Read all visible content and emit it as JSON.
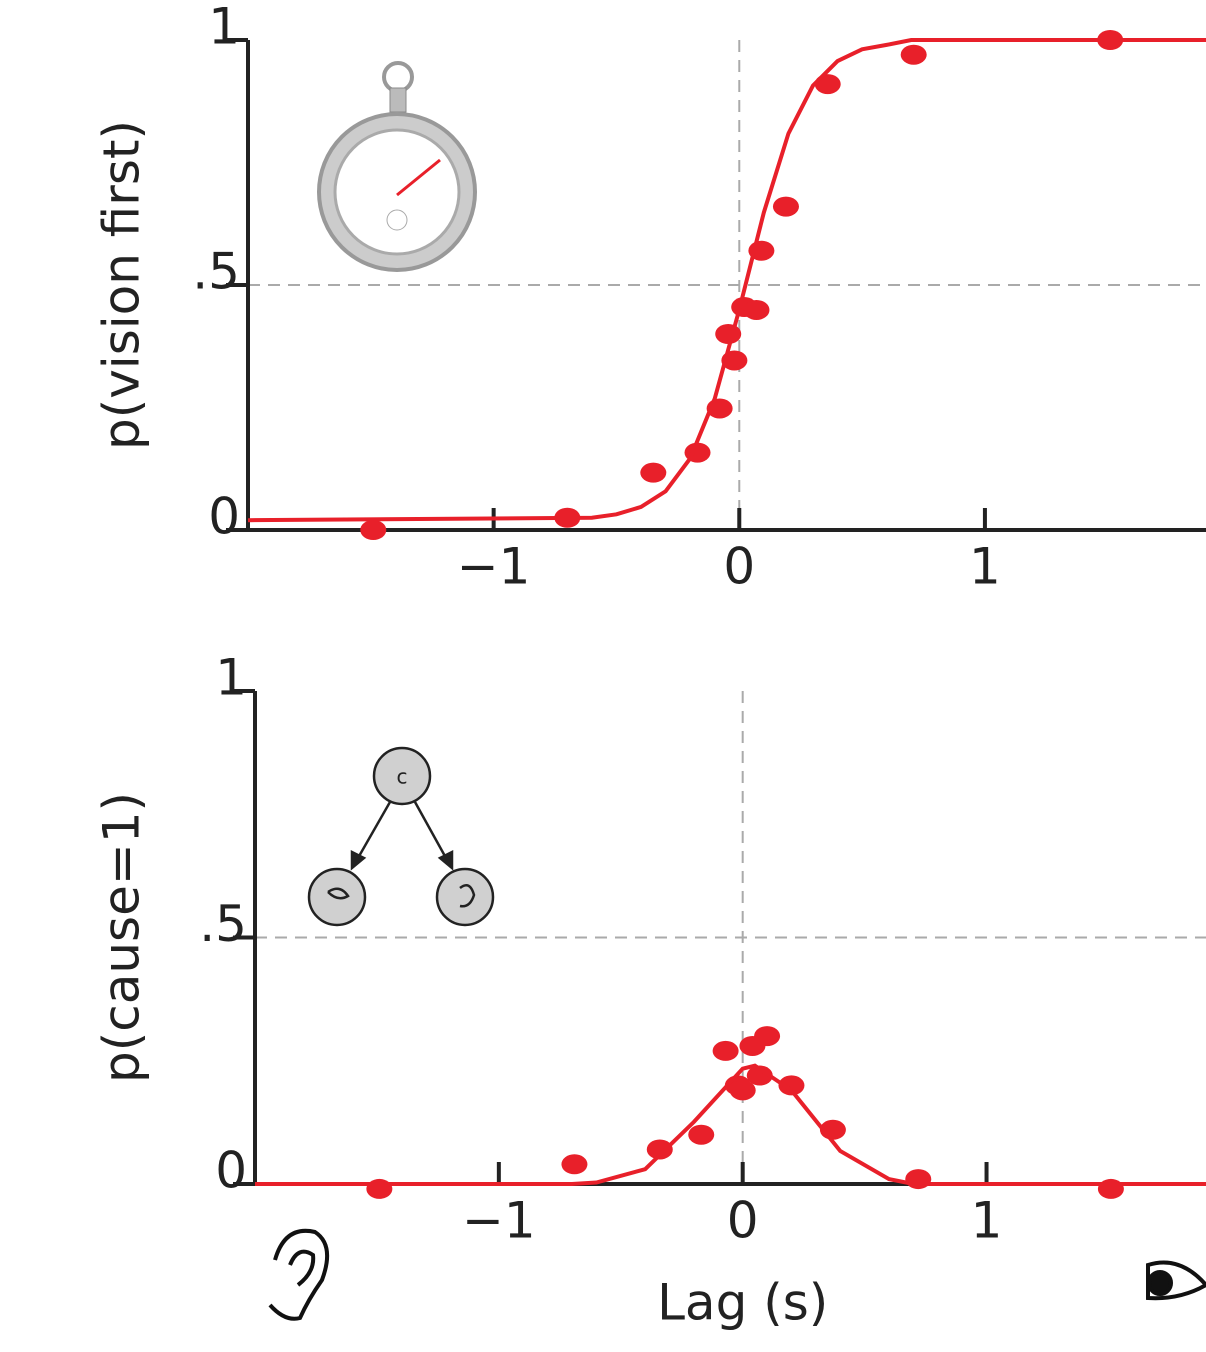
{
  "chart_data": [
    {
      "type": "scatter",
      "ylabel": "p(vision first)",
      "xlim": [
        -2.0,
        1.9
      ],
      "ylim": [
        0,
        1
      ],
      "xticks": [
        {
          "value": -1,
          "label": "−1"
        },
        0,
        1
      ],
      "yticks": [
        0,
        {
          "value": 0.5,
          "label": ".5"
        },
        1
      ],
      "reference_lines": [
        {
          "axis": "x",
          "value": 0
        },
        {
          "axis": "y",
          "value": 0.5
        }
      ],
      "series": [
        {
          "style": "points",
          "color": "#e8202a",
          "x": [
            -1.49,
            -0.7,
            -0.35,
            -0.17,
            -0.08,
            -0.02,
            -0.045,
            0.02,
            0.07,
            0.09,
            0.19,
            0.36,
            0.71,
            1.51
          ],
          "values": [
            0.0,
            0.025,
            0.117,
            0.158,
            0.248,
            0.346,
            0.4,
            0.455,
            0.449,
            0.57,
            0.66,
            0.91,
            0.97,
            1.0
          ]
        },
        {
          "style": "line",
          "color": "#e8202a",
          "x": [
            -2.0,
            -0.6,
            -0.5,
            -0.4,
            -0.3,
            -0.2,
            -0.1,
            0,
            0.1,
            0.2,
            0.3,
            0.4,
            0.5,
            0.6,
            0.7,
            1.9
          ],
          "values": [
            0.02,
            0.025,
            0.032,
            0.047,
            0.079,
            0.146,
            0.268,
            0.45,
            0.648,
            0.809,
            0.907,
            0.957,
            0.981,
            0.99,
            1.0,
            1.0
          ]
        }
      ]
    },
    {
      "type": "scatter",
      "ylabel": "p(cause=1)",
      "xlabel": "Lag (s)",
      "inset_label": "c",
      "xlim": [
        -2.0,
        1.9
      ],
      "ylim": [
        0,
        1
      ],
      "xticks": [
        {
          "value": -1,
          "label": "−1"
        },
        0,
        1
      ],
      "yticks": [
        0,
        {
          "value": 0.5,
          "label": ".5"
        },
        1
      ],
      "reference_lines": [
        {
          "axis": "x",
          "value": 0
        },
        {
          "axis": "y",
          "value": 0.5
        }
      ],
      "series": [
        {
          "style": "points",
          "color": "#e8202a",
          "x": [
            -1.49,
            -0.69,
            -0.34,
            -0.17,
            -0.07,
            -0.02,
            0.0,
            0.04,
            0.1,
            0.07,
            0.2,
            0.37,
            0.72,
            1.51
          ],
          "values": [
            -0.01,
            0.04,
            0.07,
            0.1,
            0.27,
            0.2,
            0.19,
            0.28,
            0.3,
            0.22,
            0.2,
            0.11,
            0.01,
            -0.01
          ]
        },
        {
          "style": "line",
          "color": "#e8202a",
          "x": [
            -2.0,
            -0.7,
            -0.6,
            -0.4,
            -0.2,
            0,
            0.05,
            0.2,
            0.4,
            0.6,
            0.7,
            1.9
          ],
          "values": [
            0,
            0,
            0.003,
            0.03,
            0.126,
            0.234,
            0.24,
            0.19,
            0.067,
            0.01,
            0,
            0
          ]
        }
      ]
    }
  ]
}
